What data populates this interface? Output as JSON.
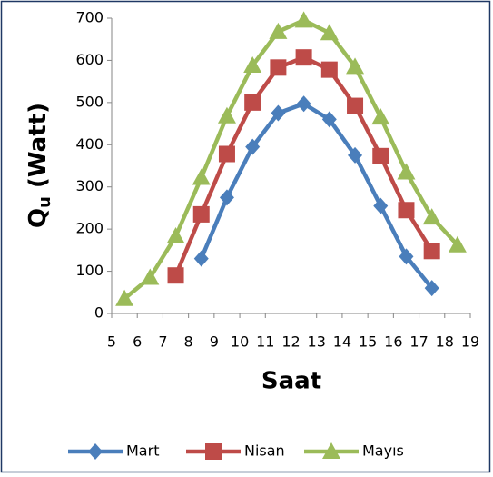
{
  "chart_data": {
    "type": "line",
    "xlabel": "Saat",
    "ylabel": {
      "base": "Q",
      "sub": "u",
      "rest": " (Watt)"
    },
    "xlim": [
      5,
      19
    ],
    "xticks": [
      5,
      6,
      7,
      8,
      9,
      10,
      11,
      12,
      13,
      14,
      15,
      16,
      17,
      18,
      19
    ],
    "ylim": [
      0,
      700
    ],
    "yticks": [
      0,
      100,
      200,
      300,
      400,
      500,
      600,
      700
    ],
    "grid": false,
    "legend": "bottom",
    "series": [
      {
        "name": "Mart",
        "color": "#4a7ebb",
        "marker": "diamond",
        "x": [
          8.5,
          9.5,
          10.5,
          11.5,
          12.5,
          13.5,
          14.5,
          15.5,
          16.5,
          17.5
        ],
        "values": [
          130,
          275,
          395,
          475,
          497,
          460,
          375,
          255,
          135,
          60
        ]
      },
      {
        "name": "Nisan",
        "color": "#be4b48",
        "marker": "square",
        "x": [
          7.5,
          8.5,
          9.5,
          10.5,
          11.5,
          12.5,
          13.5,
          14.5,
          15.5,
          16.5,
          17.5
        ],
        "values": [
          90,
          235,
          378,
          500,
          583,
          607,
          578,
          492,
          373,
          245,
          148
        ]
      },
      {
        "name": "Mayıs",
        "color": "#9bbb59",
        "marker": "triangle",
        "x": [
          5.5,
          6.5,
          7.5,
          8.5,
          9.5,
          10.5,
          11.5,
          12.5,
          13.5,
          14.5,
          15.5,
          16.5,
          17.5,
          18.5
        ],
        "values": [
          35,
          85,
          183,
          322,
          468,
          588,
          668,
          695,
          665,
          585,
          465,
          335,
          228,
          162
        ]
      }
    ]
  }
}
